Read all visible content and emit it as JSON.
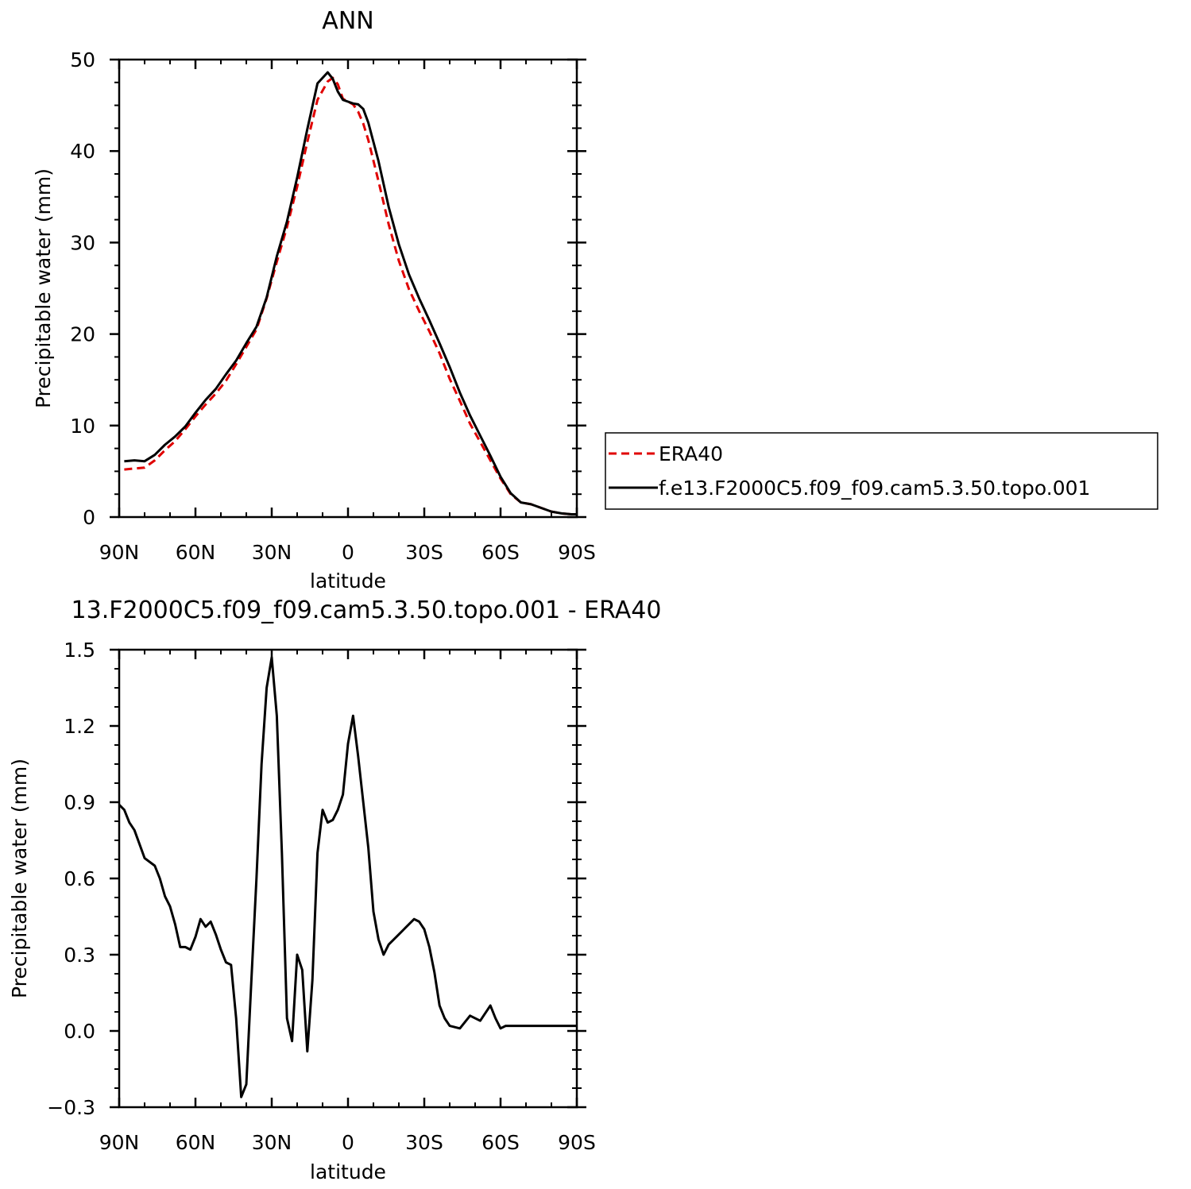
{
  "chart_data": [
    {
      "type": "line",
      "title": "ANN",
      "xlabel": "latitude",
      "ylabel": "Precipitable water (mm)",
      "x_axis": "latitude in degrees, 90 (north) to -90 (south)",
      "xlim": [
        90,
        -90
      ],
      "ylim": [
        0,
        50
      ],
      "x_ticks": [
        {
          "value": 90,
          "label": "90N"
        },
        {
          "value": 60,
          "label": "60N"
        },
        {
          "value": 30,
          "label": "30N"
        },
        {
          "value": 0,
          "label": "0"
        },
        {
          "value": -30,
          "label": "30S"
        },
        {
          "value": -60,
          "label": "60S"
        },
        {
          "value": -90,
          "label": "90S"
        }
      ],
      "y_ticks": [
        {
          "value": 0,
          "label": "0"
        },
        {
          "value": 10,
          "label": "10"
        },
        {
          "value": 20,
          "label": "20"
        },
        {
          "value": 30,
          "label": "30"
        },
        {
          "value": 40,
          "label": "40"
        },
        {
          "value": 50,
          "label": "50"
        }
      ],
      "legend": {
        "placement": "right"
      },
      "series": [
        {
          "name": "ERA40",
          "color": "#e00000",
          "dash": "dashed",
          "x": [
            88,
            84,
            80,
            76,
            72,
            68,
            64,
            60,
            56,
            52,
            48,
            44,
            40,
            36,
            32,
            28,
            24,
            20,
            16,
            12,
            8,
            6,
            4,
            2,
            0,
            -2,
            -4,
            -6,
            -8,
            -12,
            -16,
            -20,
            -24,
            -28,
            -32,
            -36,
            -40,
            -44,
            -48,
            -52,
            -56,
            -60,
            -64,
            -68,
            -72,
            -76,
            -80,
            -84,
            -88,
            -90
          ],
          "values": [
            5.2,
            5.3,
            5.4,
            6.2,
            7.3,
            8.3,
            9.6,
            11.0,
            12.3,
            13.5,
            14.9,
            16.7,
            18.6,
            20.5,
            23.9,
            27.9,
            31.7,
            36.1,
            41.0,
            45.6,
            47.6,
            48.0,
            47.3,
            45.7,
            45.4,
            45.1,
            44.3,
            43.0,
            41.2,
            36.7,
            32.0,
            28.0,
            24.9,
            22.5,
            20.3,
            17.9,
            15.1,
            12.7,
            10.2,
            8.2,
            6.2,
            4.2,
            2.5,
            1.6,
            1.4,
            1.0,
            0.6,
            0.4,
            0.3,
            0.3
          ]
        },
        {
          "name": "f.e13.F2000C5.f09_f09.cam5.3.50.topo.001",
          "color": "#000000",
          "dash": "solid",
          "x": [
            88,
            84,
            80,
            76,
            72,
            68,
            64,
            60,
            56,
            52,
            48,
            44,
            40,
            36,
            32,
            28,
            24,
            20,
            16,
            12,
            8,
            6,
            4,
            2,
            0,
            -2,
            -4,
            -6,
            -8,
            -12,
            -16,
            -20,
            -24,
            -28,
            -32,
            -36,
            -40,
            -44,
            -48,
            -52,
            -56,
            -60,
            -64,
            -68,
            -72,
            -76,
            -80,
            -84,
            -88,
            -90
          ],
          "values": [
            6.1,
            6.2,
            6.1,
            6.8,
            7.9,
            8.8,
            9.9,
            11.4,
            12.8,
            14.0,
            15.6,
            17.1,
            19.0,
            20.8,
            24.0,
            28.5,
            32.3,
            37.1,
            42.4,
            47.4,
            48.6,
            47.9,
            46.5,
            45.6,
            45.4,
            45.2,
            45.1,
            44.6,
            43.1,
            38.9,
            33.9,
            29.8,
            26.5,
            23.9,
            21.5,
            19.0,
            16.4,
            13.6,
            11.1,
            8.9,
            6.7,
            4.4,
            2.6,
            1.6,
            1.4,
            1.0,
            0.6,
            0.4,
            0.3,
            0.3
          ]
        }
      ]
    },
    {
      "type": "line",
      "title": "13.F2000C5.f09_f09.cam5.3.50.topo.001 - ERA40",
      "xlabel": "latitude",
      "ylabel": "Precipitable water (mm)",
      "x_axis": "latitude in degrees, 90 (north) to -90 (south)",
      "xlim": [
        90,
        -90
      ],
      "ylim": [
        -0.3,
        1.5
      ],
      "x_ticks": [
        {
          "value": 90,
          "label": "90N"
        },
        {
          "value": 60,
          "label": "60N"
        },
        {
          "value": 30,
          "label": "30N"
        },
        {
          "value": 0,
          "label": "0"
        },
        {
          "value": -30,
          "label": "30S"
        },
        {
          "value": -60,
          "label": "60S"
        },
        {
          "value": -90,
          "label": "90S"
        }
      ],
      "y_ticks": [
        {
          "value": -0.3,
          "label": "−0.3"
        },
        {
          "value": 0.0,
          "label": "0.0"
        },
        {
          "value": 0.3,
          "label": "0.3"
        },
        {
          "value": 0.6,
          "label": "0.6"
        },
        {
          "value": 0.9,
          "label": "0.9"
        },
        {
          "value": 1.2,
          "label": "1.2"
        },
        {
          "value": 1.5,
          "label": "1.5"
        }
      ],
      "series": [
        {
          "color": "#000000",
          "dash": "solid",
          "x": [
            90,
            88,
            86,
            84,
            80,
            76,
            74,
            72,
            70,
            68,
            66,
            64,
            62,
            60,
            58,
            56,
            54,
            52,
            50,
            48,
            46,
            44,
            42,
            40,
            38,
            36,
            34,
            32,
            30,
            28,
            26,
            24,
            22,
            20,
            18,
            16,
            14,
            12,
            10,
            8,
            6,
            4,
            2,
            0,
            -2,
            -4,
            -6,
            -8,
            -10,
            -12,
            -14,
            -16,
            -18,
            -20,
            -22,
            -24,
            -26,
            -28,
            -30,
            -32,
            -34,
            -36,
            -38,
            -40,
            -44,
            -48,
            -52,
            -54,
            -56,
            -58,
            -60,
            -62,
            -64,
            -66,
            -68,
            -70,
            -72,
            -74,
            -76,
            -78,
            -80,
            -82,
            -84,
            -86,
            -88,
            -90
          ],
          "values": [
            0.89,
            0.87,
            0.82,
            0.79,
            0.68,
            0.65,
            0.6,
            0.53,
            0.49,
            0.42,
            0.33,
            0.33,
            0.32,
            0.37,
            0.44,
            0.41,
            0.43,
            0.38,
            0.32,
            0.27,
            0.26,
            0.05,
            -0.26,
            -0.21,
            0.2,
            0.6,
            1.05,
            1.35,
            1.47,
            1.24,
            0.7,
            0.05,
            -0.04,
            0.3,
            0.24,
            -0.08,
            0.2,
            0.7,
            0.87,
            0.82,
            0.83,
            0.87,
            0.93,
            1.13,
            1.24,
            1.08,
            0.9,
            0.72,
            0.47,
            0.36,
            0.3,
            0.34,
            0.36,
            0.38,
            0.4,
            0.42,
            0.44,
            0.43,
            0.4,
            0.33,
            0.23,
            0.1,
            0.05,
            0.02,
            0.01,
            0.06,
            0.04,
            0.07,
            0.1,
            0.05,
            0.01,
            0.02,
            0.02,
            0.02,
            0.02,
            0.02,
            0.02,
            0.02,
            0.02,
            0.02,
            0.02,
            0.02,
            0.02,
            0.02,
            0.02,
            0.02
          ]
        }
      ]
    }
  ]
}
